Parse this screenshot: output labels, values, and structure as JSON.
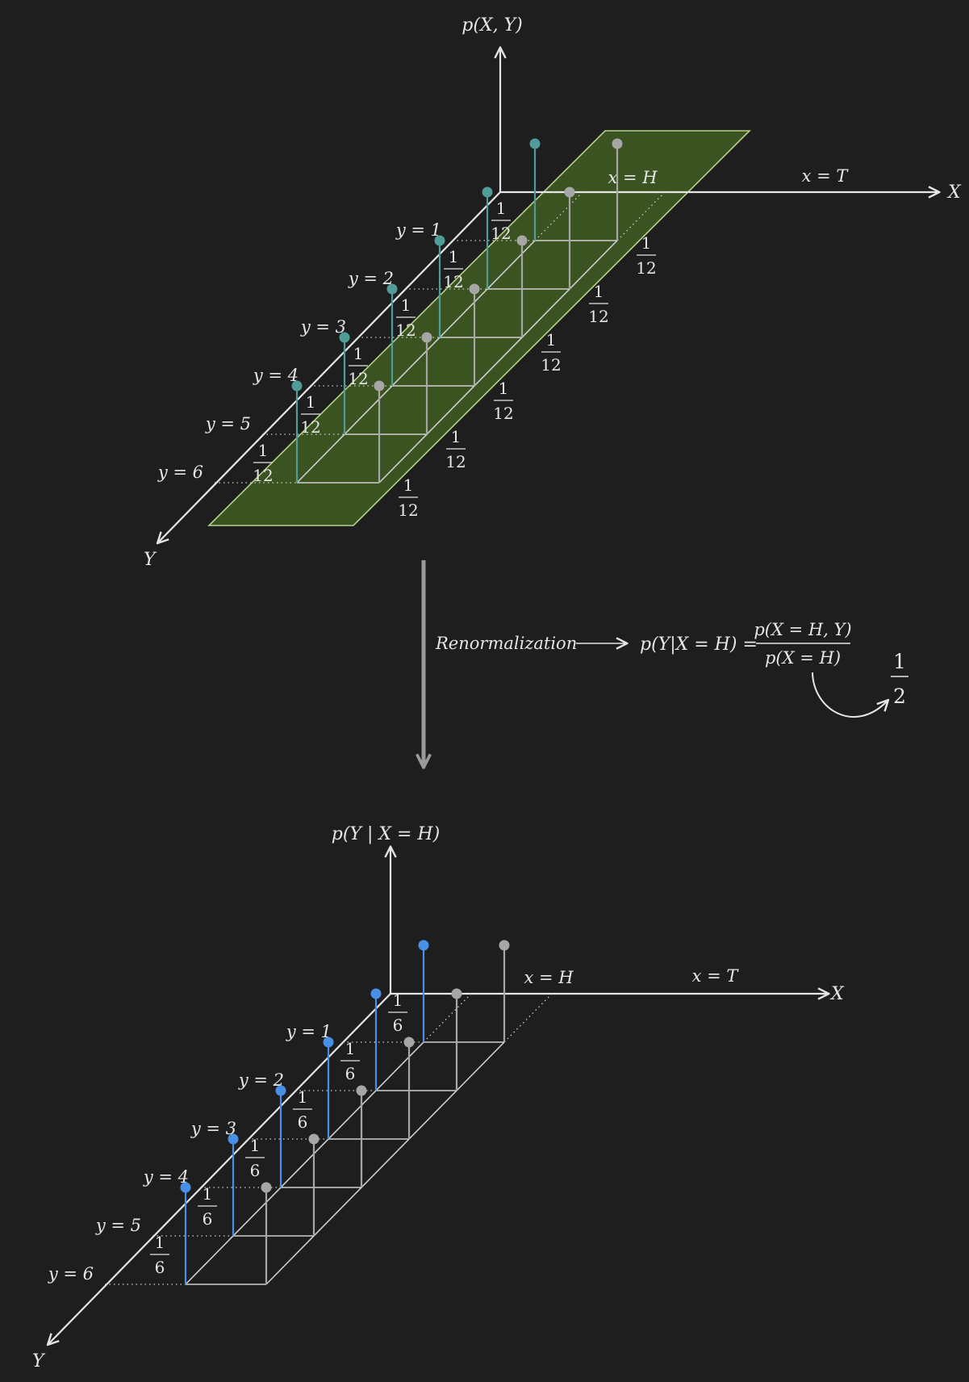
{
  "top": {
    "axis_z": "p(X, Y)",
    "axis_x": "X",
    "axis_y": "Y",
    "x_labels": [
      "x = H",
      "x = T"
    ],
    "y_labels": [
      "y = 1",
      "y = 2",
      "y = 3",
      "y = 4",
      "y = 5",
      "y = 6"
    ],
    "stem_num": "1",
    "stem_den": "12"
  },
  "middle": {
    "step": "Renormalization",
    "lhs": "p(Y|X = H) =",
    "num": "p(X = H, Y)",
    "den": "p(X = H)",
    "marginal_num": "1",
    "marginal_den": "2"
  },
  "bottom": {
    "axis_z": "p(Y | X = H)",
    "axis_x": "X",
    "axis_y": "Y",
    "x_labels": [
      "x = H",
      "x = T"
    ],
    "y_labels": [
      "y = 1",
      "y = 2",
      "y = 3",
      "y = 4",
      "y = 5",
      "y = 6"
    ],
    "stem_num": "1",
    "stem_den": "6"
  },
  "colors": {
    "background": "#1e1e1e",
    "highlight_plane": "#3a5320",
    "highlight_edge": "#b4d28a",
    "teal_stem": "#4f9c98",
    "blue_stem": "#4a8fe6",
    "gray_stem": "#a6a6a6"
  }
}
